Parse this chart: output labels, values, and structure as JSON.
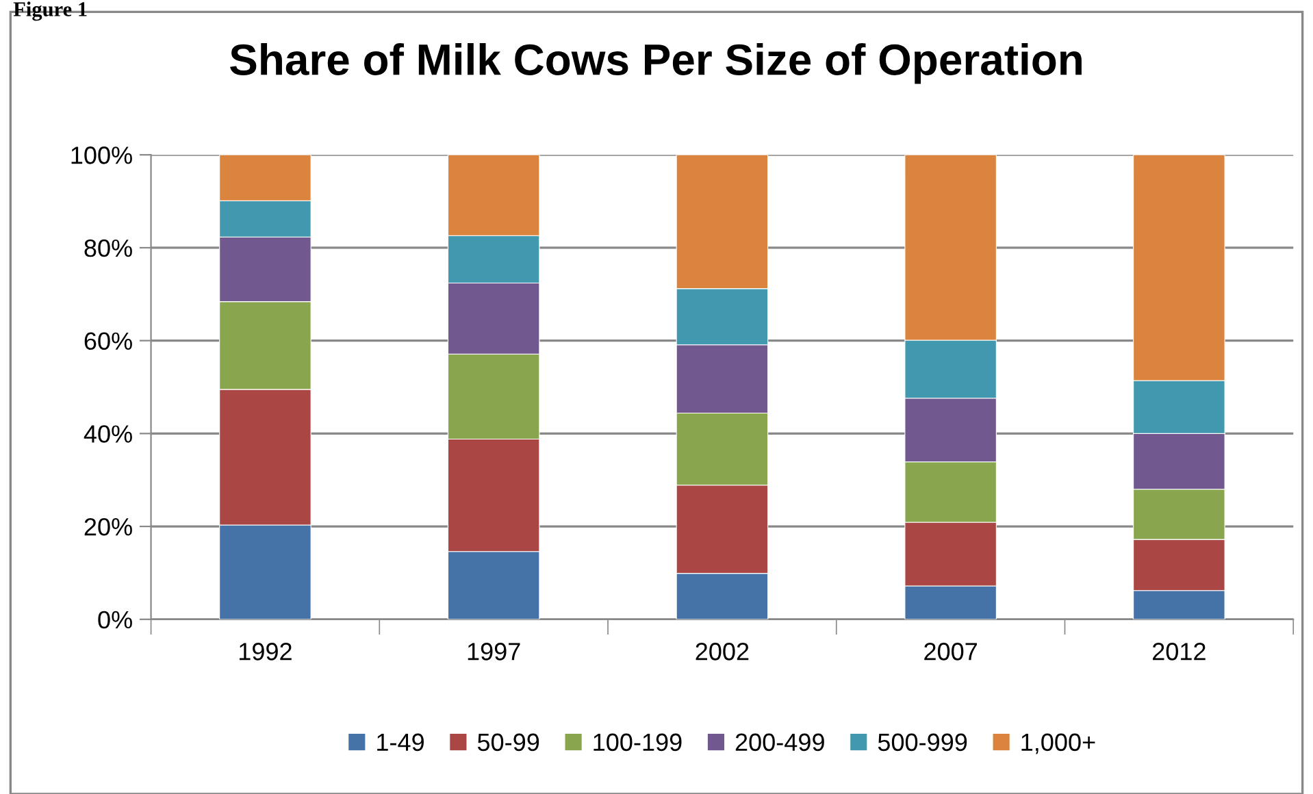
{
  "chart_data": {
    "type": "bar",
    "stacked": true,
    "title": "Share of Milk Cows Per Size of Operation",
    "annotations": [
      "Figure 1"
    ],
    "categories": [
      "1992",
      "1997",
      "2002",
      "2007",
      "2012"
    ],
    "series": [
      {
        "name": "1-49",
        "color": "#4572a7",
        "values": [
          20.3,
          14.6,
          9.9,
          7.2,
          6.2
        ]
      },
      {
        "name": "50-99",
        "color": "#aa4643",
        "values": [
          29.2,
          24.2,
          19.0,
          13.7,
          11.0
        ]
      },
      {
        "name": "100-199",
        "color": "#89a54e",
        "values": [
          18.9,
          18.3,
          15.5,
          13.0,
          10.8
        ]
      },
      {
        "name": "200-499",
        "color": "#71588f",
        "values": [
          13.9,
          15.3,
          14.7,
          13.7,
          12.0
        ]
      },
      {
        "name": "500-999",
        "color": "#4198af",
        "values": [
          7.8,
          10.2,
          12.1,
          12.5,
          11.4
        ]
      },
      {
        "name": "1,000+",
        "color": "#db843d",
        "values": [
          9.9,
          17.4,
          28.8,
          39.9,
          48.6
        ]
      }
    ],
    "ylim": [
      0,
      100
    ],
    "yticks": [
      {
        "value": 0,
        "label": "0%"
      },
      {
        "value": 20,
        "label": "20%"
      },
      {
        "value": 40,
        "label": "40%"
      },
      {
        "value": 60,
        "label": "60%"
      },
      {
        "value": 80,
        "label": "80%"
      },
      {
        "value": 100,
        "label": "100%"
      }
    ],
    "grid": "y",
    "legend": "bottom"
  }
}
